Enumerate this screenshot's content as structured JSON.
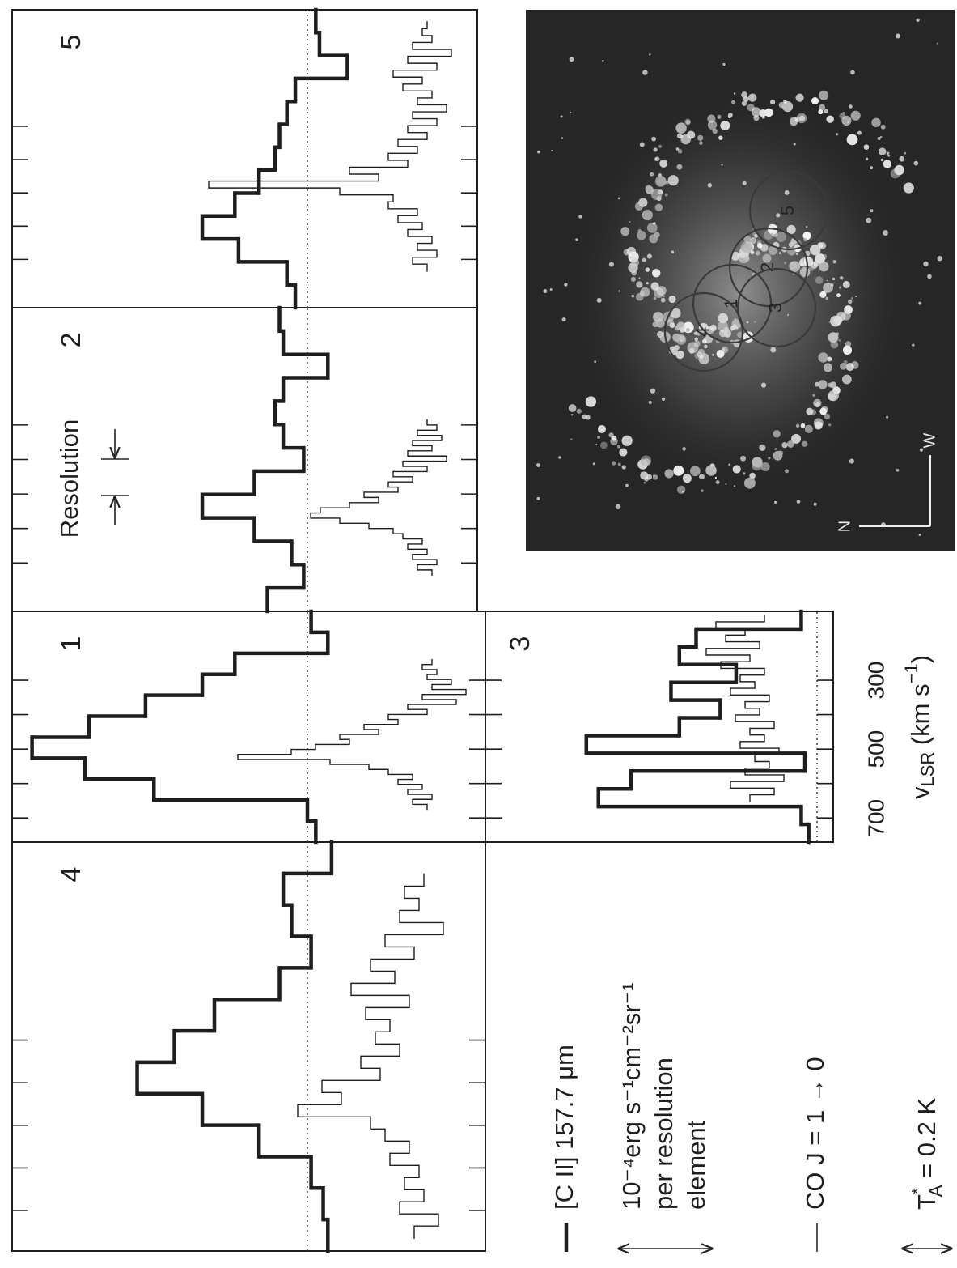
{
  "chart_data": {
    "type": "spectra",
    "xticks": [
      700,
      {
        "value": 600,
        "label": null
      },
      500,
      {
        "value": 400,
        "label": null
      },
      300
    ],
    "xlabel": [
      "v",
      "LSR",
      " (km s",
      "−1",
      ")"
    ],
    "resolution_label": "Resolution",
    "panels": [
      {
        "label": "4",
        "xlim": [
          795,
          -165
        ],
        "co_xlim": [
          765,
          -90
        ],
        "cii": [
          -0.22,
          -0.17,
          -0.04,
          0.52,
          1.13,
          1.83,
          1.43,
          1.0,
          0.3,
          -0.04,
          0.17,
          0.26,
          -0.26
        ],
        "co": [
          0.06,
          -0.04,
          0.12,
          0.02,
          0.1,
          0.04,
          0.16,
          0.08,
          0.18,
          0.24,
          0.54,
          0.36,
          0.44,
          0.2,
          0.28,
          0.12,
          0.22,
          0.16,
          0.26,
          0.08,
          0.32,
          0.14,
          0.24,
          0.06,
          0.18,
          -0.06,
          0.12,
          0.04,
          0.1,
          0.02
        ]
      },
      {
        "label": "1",
        "xlim": [
          770,
          100
        ],
        "co_xlim": [
          675,
          240
        ],
        "cii": [
          -0.09,
          0,
          1.65,
          2.39,
          2.96,
          2.35,
          1.74,
          1.13,
          0.78,
          -0.22,
          -0.04
        ],
        "co": [
          0.04,
          0.1,
          0.02,
          0.12,
          0.06,
          0.16,
          0.1,
          0.2,
          0.28,
          0.44,
          0.82,
          0.6,
          0.5,
          0.36,
          0.4,
          0.24,
          0.3,
          0.16,
          0.2,
          0.04,
          0.12,
          -0.08,
          0.06,
          -0.12,
          0.02,
          -0.06,
          0.04,
          0,
          0.06,
          0.02
        ]
      },
      {
        "label": "2",
        "xlim": [
          840,
          -40
        ],
        "co_xlim": [
          735,
          285
        ],
        "cii": [
          0.43,
          0.04,
          0.17,
          0.57,
          1.13,
          0.57,
          0.04,
          0.26,
          0.35,
          0.26,
          -0.22,
          0.26,
          0.3
        ],
        "co": [
          0.02,
          0.08,
          0,
          0.1,
          0.04,
          0.12,
          0.06,
          0.14,
          0.18,
          0.28,
          0.4,
          0.52,
          0.48,
          0.36,
          0.24,
          0.3,
          0.16,
          0.2,
          0.1,
          0.18,
          0.04,
          0.14,
          -0.04,
          0.12,
          0.02,
          0.1,
          -0.02,
          0.08,
          0,
          0.04
        ]
      },
      {
        "label": "5",
        "xlim": [
          845,
          -50
        ],
        "co_xlim": [
          735,
          -14
        ],
        "cii": [
          0.13,
          0.22,
          0.74,
          1.13,
          0.78,
          0.52,
          0.35,
          0.3,
          0.22,
          0.13,
          -0.43,
          -0.13,
          -0.09
        ],
        "co": [
          0.04,
          0.1,
          0,
          0.08,
          0.02,
          0.12,
          0.06,
          0.16,
          0.08,
          0.2,
          0.18,
          0.4,
          0.94,
          0.24,
          0.36,
          0.12,
          0.2,
          0.08,
          0.16,
          0.04,
          0.12,
          0,
          0.1,
          -0.04,
          0.08,
          0.02,
          0.14,
          0.06,
          0.18,
          0,
          0.12,
          -0.06,
          0.1,
          0.02,
          0.06,
          0.04
        ]
      },
      {
        "label": "3",
        "xlim": [
          770,
          100
        ],
        "co_xlim": [
          652,
          111
        ],
        "cii": [
          0.09,
          0.17,
          2.35,
          2.0,
          0.13,
          2.48,
          1.48,
          1.04,
          1.57,
          0.87,
          1.48,
          1.3,
          0.17
        ],
        "co": [
          0.16,
          0.06,
          0.24,
          0.02,
          0.18,
          0.08,
          0.14,
          0.04,
          0.2,
          0.1,
          0.16,
          0.06,
          0.22,
          0.12,
          0.18,
          0.08,
          0.24,
          0.14,
          0.2,
          0.1,
          0.28,
          0.16,
          0.34,
          0.12,
          0.26,
          0.18,
          0.3,
          0.1
        ]
      }
    ],
    "legend": {
      "cii_label": "[C II] 157.7 μm",
      "cii_unit": [
        "10⁻⁴erg s⁻¹cm⁻²sr⁻¹",
        "per resolution",
        "element"
      ],
      "cii_scale": 1,
      "co_label": "CO  J = 1 → 0",
      "co_scale_text": [
        "T",
        "*",
        "A",
        " = 0.2 K"
      ],
      "co_scale": 0.2
    },
    "image": {
      "apertures": [
        "1",
        "2",
        "3",
        "4",
        "5"
      ],
      "compass": [
        "N",
        "W"
      ]
    }
  }
}
